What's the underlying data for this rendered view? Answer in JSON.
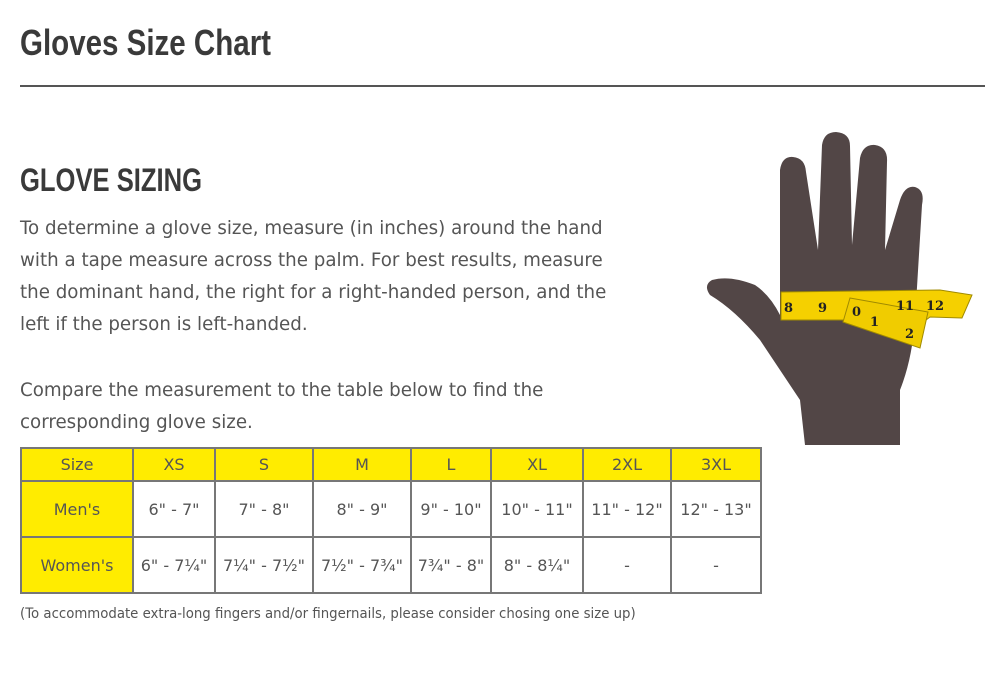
{
  "title": "Gloves Size Chart",
  "section_heading": "GLOVE SIZING",
  "paragraph1": "To determine a glove size, measure (in inches) around the hand with a tape measure across the palm. For best results, measure the dominant hand, the right for a right-handed person, and the left if the person is left-handed.",
  "paragraph2": "Compare the measurement to the table below to find the corresponding glove size.",
  "table": {
    "header": [
      "Size",
      "XS",
      "S",
      "M",
      "L",
      "XL",
      "2XL",
      "3XL"
    ],
    "rows": [
      [
        "Men's",
        "6\" - 7\"",
        "7\" - 8\"",
        "8\" - 9\"",
        "9\" - 10\"",
        "10\" - 11\"",
        "11\" - 12\"",
        "12\" - 13\""
      ],
      [
        "Women's",
        "6\" - 7¼\"",
        "7¼\" - 7½\"",
        "7½\" - 7¾\"",
        "7¾\" - 8\"",
        "8\" - 8¼\"",
        "-",
        "-"
      ]
    ]
  },
  "note": "(To accommodate extra-long fingers and/or fingernails, please consider chosing one size up)",
  "colors": {
    "header_yellow": "#ffec00",
    "hand": "#524646",
    "tape": "#f5d000"
  },
  "illustration": {
    "icon": "hand-with-tape-measure-icon",
    "tape_numbers": [
      "8",
      "9",
      "0",
      "1",
      "11",
      "12",
      "2"
    ]
  }
}
